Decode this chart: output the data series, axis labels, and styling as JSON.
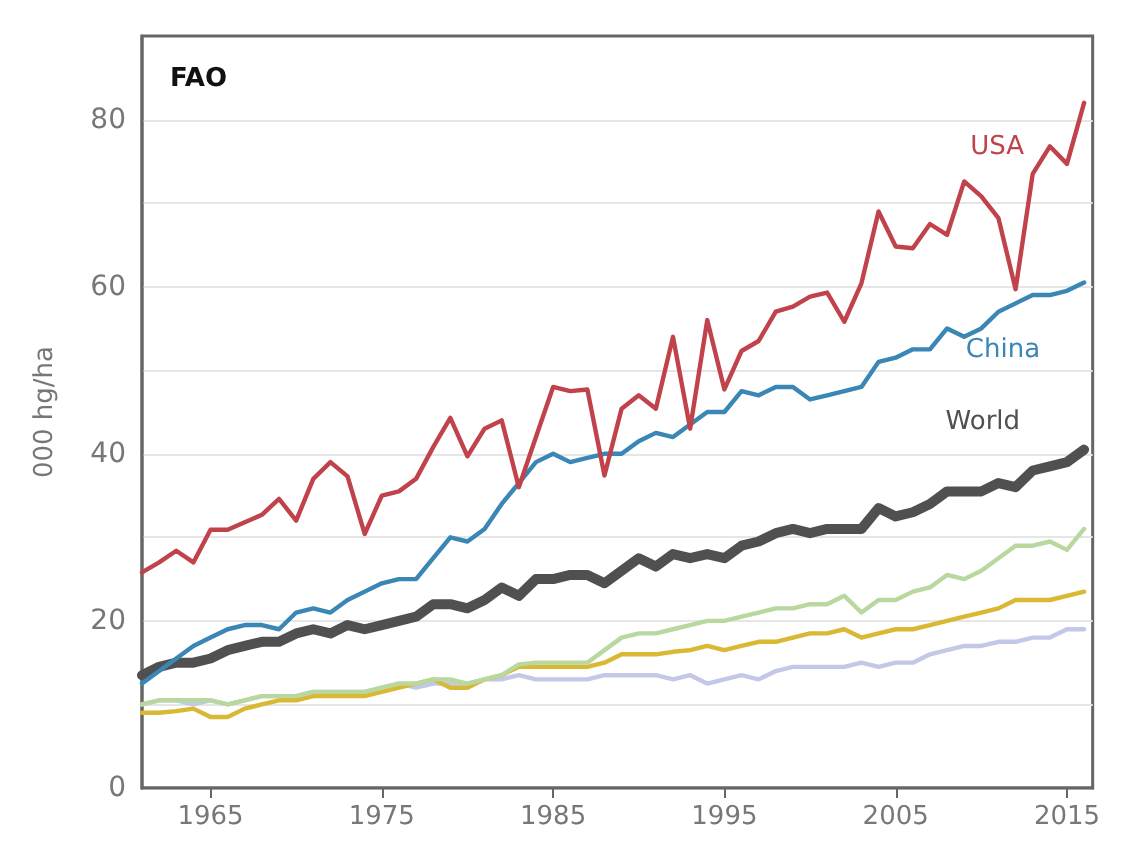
{
  "chart_data": {
    "type": "line",
    "title": "FAO",
    "ylabel": "000 hg/ha",
    "x": [
      1961,
      1962,
      1963,
      1964,
      1965,
      1966,
      1967,
      1968,
      1969,
      1970,
      1971,
      1972,
      1973,
      1974,
      1975,
      1976,
      1977,
      1978,
      1979,
      1980,
      1981,
      1982,
      1983,
      1984,
      1985,
      1986,
      1987,
      1988,
      1989,
      1990,
      1991,
      1992,
      1993,
      1994,
      1995,
      1996,
      1997,
      1998,
      1999,
      2000,
      2001,
      2002,
      2003,
      2004,
      2005,
      2006,
      2007,
      2008,
      2009,
      2010,
      2011,
      2012,
      2013,
      2014,
      2015,
      2016
    ],
    "xlim": [
      1961,
      2016.5
    ],
    "xticks": [
      1965,
      1975,
      1985,
      1995,
      2005,
      2015
    ],
    "ylim": [
      0,
      90
    ],
    "yticks": [
      0,
      {
        "value": 10,
        "label": null
      },
      20,
      {
        "value": 30,
        "label": null
      },
      40,
      {
        "value": 50,
        "label": null
      },
      60,
      {
        "value": 70,
        "label": null
      },
      80
    ],
    "grid": "y",
    "legend": false,
    "marker": "none",
    "line_style": "solid",
    "series": [
      {
        "name": "USA",
        "color": "#c0424b",
        "values": [
          25.8,
          27,
          28.4,
          27,
          30.9,
          30.9,
          31.8,
          32.7,
          34.6,
          32,
          37,
          39,
          37.3,
          30.4,
          35,
          35.5,
          37,
          40.8,
          44.3,
          39.7,
          43,
          44,
          36,
          42,
          48,
          47.5,
          47.7,
          37.4,
          45.4,
          47,
          45.4,
          54,
          43,
          56,
          47.7,
          52.3,
          53.5,
          57,
          57.6,
          58.8,
          59.3,
          55.8,
          60.4,
          69,
          64.8,
          64.6,
          67.5,
          66.2,
          72.6,
          70.8,
          68.2,
          59.7,
          73.5,
          76.8,
          74.7,
          82
        ]
      },
      {
        "name": "China",
        "color": "#3a86b4",
        "values": [
          12.5,
          14,
          15.5,
          17,
          18,
          19,
          19.5,
          19.5,
          19,
          21,
          21.5,
          21,
          22.5,
          23.5,
          24.5,
          25,
          25,
          27.5,
          30,
          29.5,
          31,
          34,
          36.5,
          39,
          40,
          39,
          39.5,
          40,
          40,
          41.5,
          42.5,
          42,
          43.5,
          45,
          45,
          47.5,
          47,
          48,
          48,
          46.5,
          47,
          47.5,
          48,
          51,
          51.5,
          52.5,
          52.5,
          55,
          54,
          55,
          57,
          58,
          59,
          59,
          59.5,
          60.5
        ]
      },
      {
        "name": "World",
        "color": "#505050",
        "values": [
          13.5,
          14.5,
          15,
          15,
          15.5,
          16.5,
          17,
          17.5,
          17.5,
          18.5,
          19,
          18.5,
          19.5,
          19,
          19.5,
          20,
          20.5,
          22,
          22,
          21.5,
          22.5,
          24,
          23,
          25,
          25,
          25.5,
          25.5,
          24.5,
          26,
          27.5,
          26.5,
          28,
          27.5,
          28,
          27.5,
          29,
          29.5,
          30.5,
          31,
          30.5,
          31,
          31,
          31,
          33.5,
          32.5,
          33,
          34,
          35.5,
          35.5,
          35.5,
          36.5,
          36,
          38,
          38.5,
          39,
          40.5
        ]
      },
      {
        "color": "#b8d8a0",
        "values": [
          10,
          10.5,
          10.5,
          10.5,
          10.5,
          10,
          10.5,
          11,
          11,
          11,
          11.5,
          11.5,
          11.5,
          11.5,
          12,
          12.5,
          12.5,
          13,
          13,
          12.5,
          13,
          13.5,
          14.8,
          15,
          15,
          15,
          15,
          16.5,
          18,
          18.5,
          18.5,
          19,
          19.5,
          20,
          20,
          20.5,
          21,
          21.5,
          21.5,
          22,
          22,
          23,
          21,
          22.5,
          22.5,
          23.5,
          24,
          25.5,
          25,
          26,
          27.5,
          29,
          29,
          29.5,
          28.5,
          31
        ]
      },
      {
        "color": "#d9b833",
        "values": [
          9,
          9,
          9.2,
          9.5,
          8.5,
          8.5,
          9.5,
          10,
          10.5,
          10.5,
          11,
          11,
          11,
          11,
          11.5,
          12,
          12.5,
          13,
          12,
          12,
          13,
          13.5,
          14.5,
          14.5,
          14.5,
          14.5,
          14.5,
          15,
          16,
          16,
          16,
          16.3,
          16.5,
          17,
          16.5,
          17,
          17.5,
          17.5,
          18,
          18.5,
          18.5,
          19,
          18,
          18.5,
          19,
          19,
          19.5,
          20,
          20.5,
          21,
          21.5,
          22.5,
          22.5,
          22.5,
          23,
          23.5
        ]
      },
      {
        "color": "#c3c8e8",
        "values": [
          10,
          10.5,
          10.5,
          10,
          10.5,
          10,
          10.5,
          11,
          11,
          11,
          11.5,
          11.5,
          11.5,
          11.5,
          12,
          12.5,
          12,
          12.5,
          12.5,
          12.5,
          13,
          13,
          13.5,
          13,
          13,
          13,
          13,
          13.5,
          13.5,
          13.5,
          13.5,
          13,
          13.5,
          12.5,
          13,
          13.5,
          13,
          14,
          14.5,
          14.5,
          14.5,
          14.5,
          15,
          14.5,
          15,
          15,
          16,
          16.5,
          17,
          17,
          17.5,
          17.5,
          18,
          18,
          19,
          19
        ]
      }
    ]
  }
}
